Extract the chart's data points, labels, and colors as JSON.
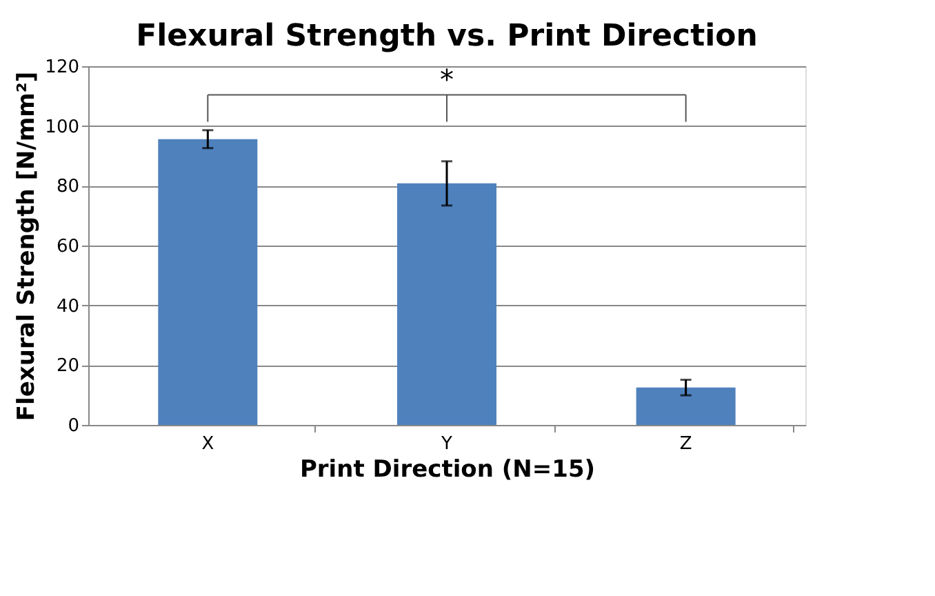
{
  "chart_data": {
    "type": "bar",
    "title": "Flexural Strength vs. Print Direction",
    "xlabel": "Print Direction (N=15)",
    "ylabel": "Flexural Strength [N/mm²]",
    "categories": [
      "X",
      "Y",
      "Z"
    ],
    "values": [
      95.6,
      80.8,
      12.5
    ],
    "errors": [
      3,
      7.4,
      2.6
    ],
    "color": "#4f81bd",
    "ylim": [
      0,
      120
    ],
    "yticks": [
      0,
      20,
      40,
      60,
      80,
      100,
      120
    ],
    "grid": "y",
    "annotations": [
      "*"
    ]
  }
}
